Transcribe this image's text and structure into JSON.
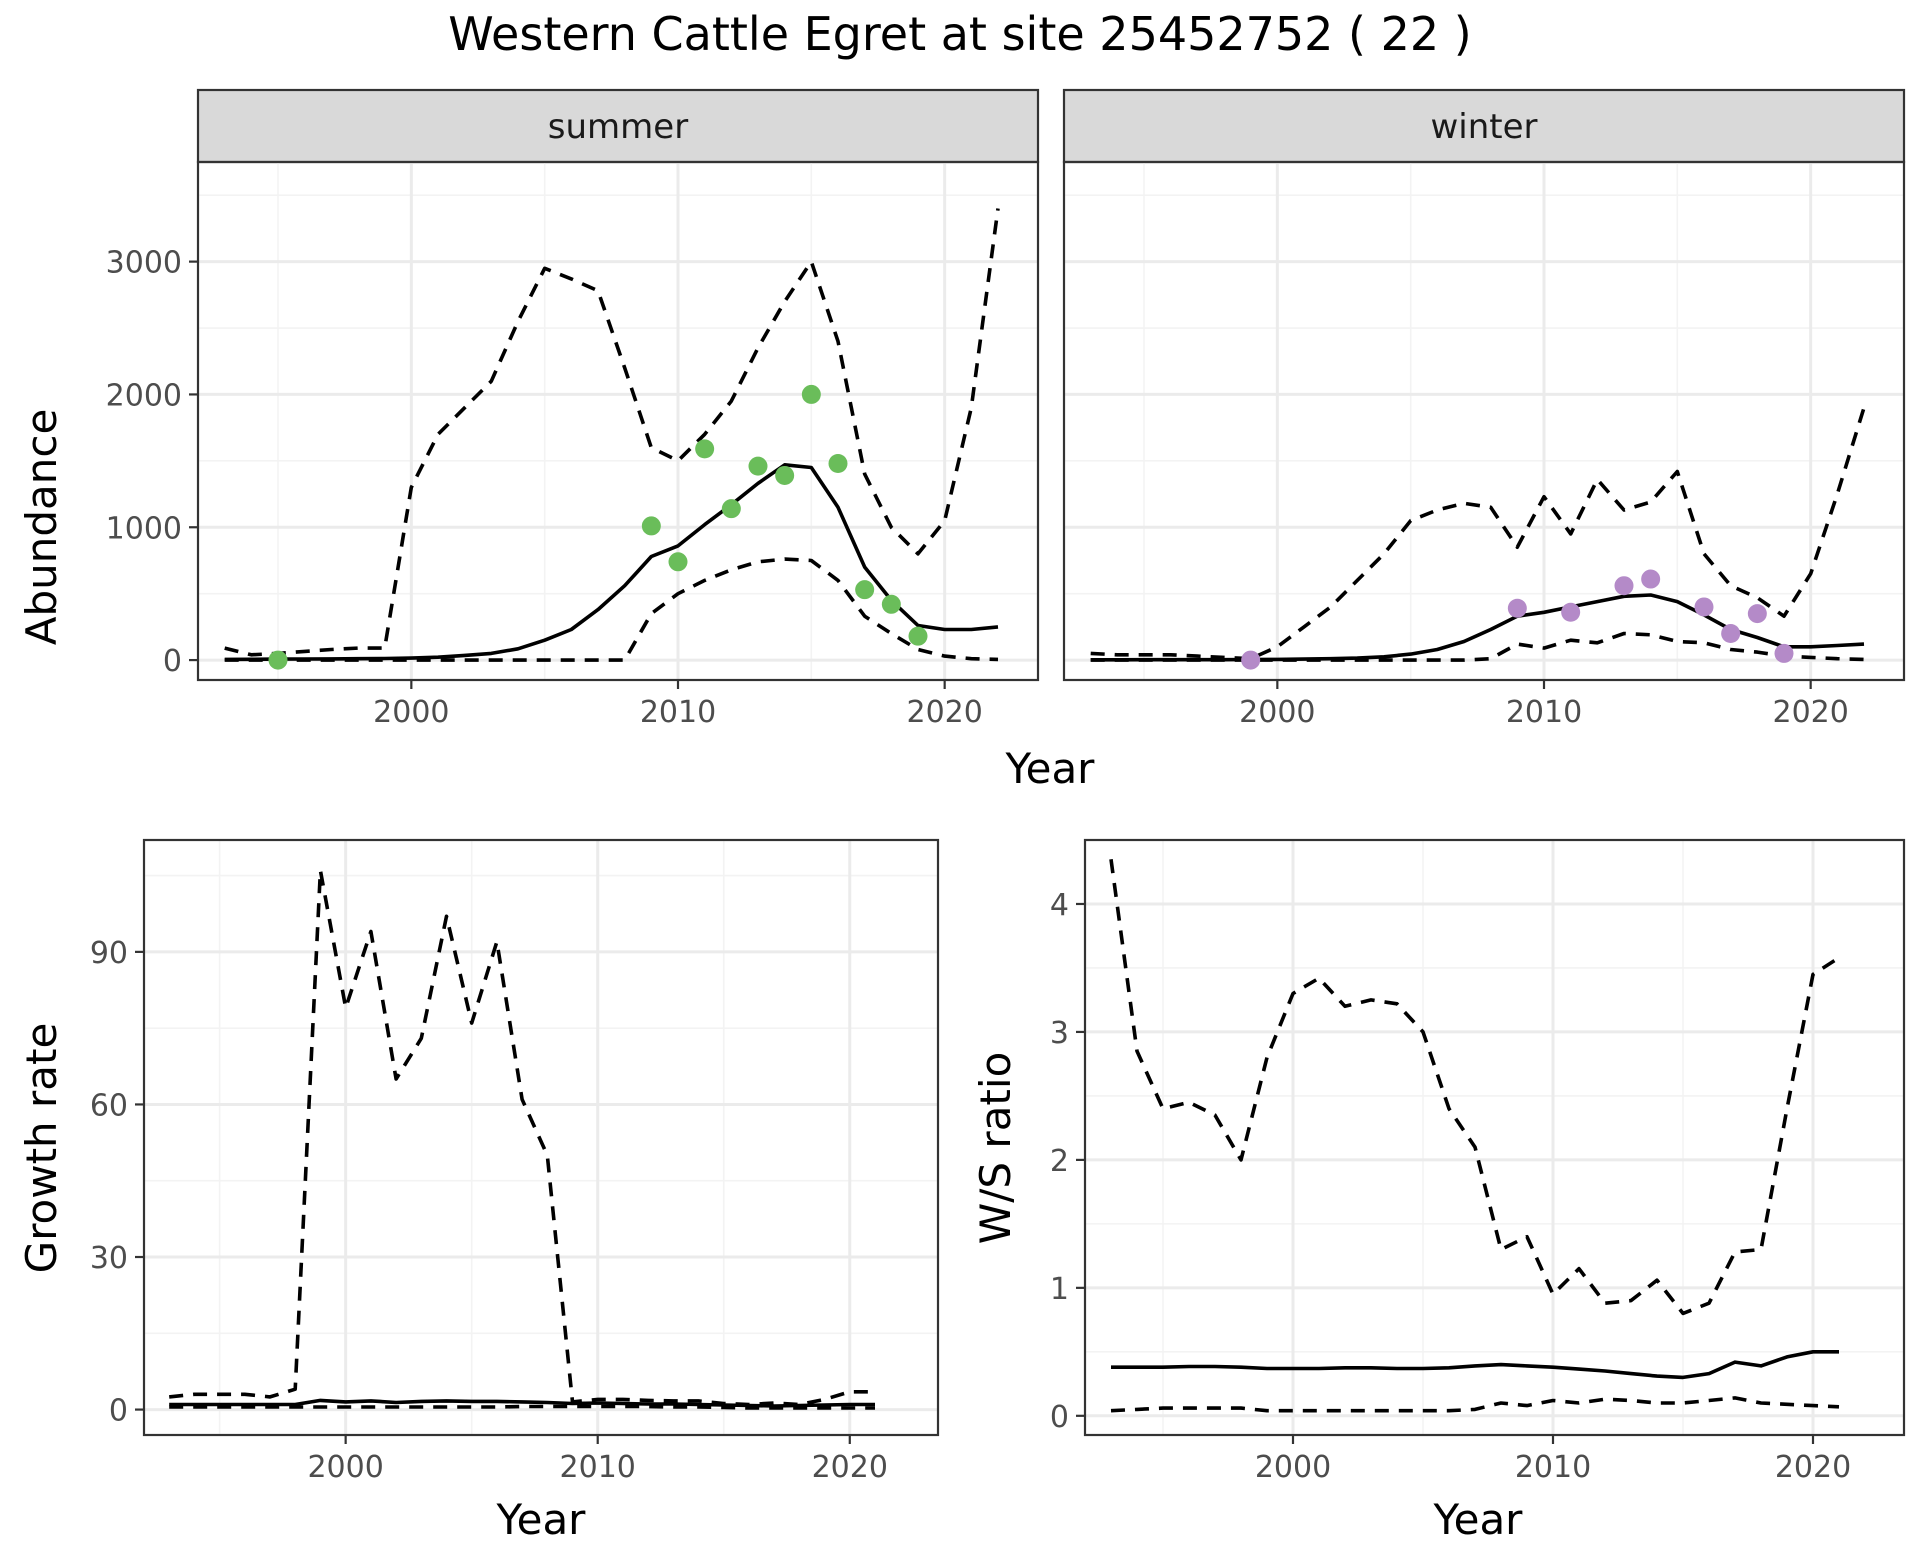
{
  "title": "Western Cattle Egret at site 25452752 ( 22 )",
  "colors": {
    "summer_points": "#6abd5a",
    "winter_points": "#b48ac8",
    "lines": "#000000"
  },
  "chart_data": [
    {
      "type": "line",
      "facet": "summer",
      "xlabel": "Year",
      "ylabel": "Abundance",
      "xlim": [
        1992,
        2023.5
      ],
      "ylim": [
        -150,
        3750
      ],
      "x_ticks": [
        2000,
        2010,
        2020
      ],
      "y_ticks": [
        0,
        1000,
        2000,
        3000
      ],
      "x": [
        1993,
        1994,
        1995,
        1996,
        1997,
        1998,
        1999,
        2000,
        2001,
        2002,
        2003,
        2004,
        2005,
        2006,
        2007,
        2008,
        2009,
        2010,
        2011,
        2012,
        2013,
        2014,
        2015,
        2016,
        2017,
        2018,
        2019,
        2020,
        2021,
        2022
      ],
      "series": [
        {
          "role": "mean",
          "style": "solid",
          "values": [
            5,
            6,
            7,
            8,
            9,
            10,
            12,
            15,
            22,
            35,
            50,
            85,
            150,
            230,
            380,
            560,
            780,
            860,
            1020,
            1170,
            1330,
            1470,
            1450,
            1150,
            700,
            450,
            260,
            230,
            230,
            250
          ]
        },
        {
          "role": "upper",
          "style": "dashed",
          "values": [
            90,
            40,
            50,
            65,
            80,
            90,
            90,
            1300,
            1700,
            1900,
            2100,
            2550,
            2950,
            2870,
            2780,
            2200,
            1600,
            1500,
            1700,
            1950,
            2350,
            2700,
            3000,
            2400,
            1400,
            1000,
            800,
            1050,
            1900,
            3400
          ]
        },
        {
          "role": "lower",
          "style": "dashed",
          "values": [
            0,
            0,
            0,
            0,
            0,
            0,
            0,
            0,
            0,
            0,
            0,
            0,
            0,
            0,
            0,
            0,
            350,
            500,
            600,
            680,
            740,
            760,
            750,
            600,
            330,
            200,
            80,
            30,
            10,
            5
          ]
        }
      ],
      "points": {
        "x": [
          1995,
          2009,
          2010,
          2011,
          2012,
          2013,
          2014,
          2015,
          2016,
          2017,
          2018,
          2019
        ],
        "y": [
          0,
          1010,
          740,
          1590,
          1140,
          1460,
          1390,
          2000,
          1480,
          530,
          420,
          180
        ]
      }
    },
    {
      "type": "line",
      "facet": "winter",
      "xlabel": "Year",
      "ylabel": "Abundance",
      "xlim": [
        1992,
        2023.5
      ],
      "ylim": [
        -150,
        3750
      ],
      "x_ticks": [
        2000,
        2010,
        2020
      ],
      "y_ticks": [
        0,
        1000,
        2000,
        3000
      ],
      "x": [
        1993,
        1994,
        1995,
        1996,
        1997,
        1998,
        1999,
        2000,
        2001,
        2002,
        2003,
        2004,
        2005,
        2006,
        2007,
        2008,
        2009,
        2010,
        2011,
        2012,
        2013,
        2014,
        2015,
        2016,
        2017,
        2018,
        2019,
        2020,
        2021,
        2022
      ],
      "series": [
        {
          "role": "mean",
          "style": "solid",
          "values": [
            2,
            2,
            3,
            3,
            3,
            3,
            4,
            5,
            7,
            10,
            15,
            25,
            45,
            80,
            140,
            230,
            330,
            360,
            400,
            440,
            480,
            490,
            440,
            340,
            230,
            170,
            100,
            100,
            110,
            120
          ]
        },
        {
          "role": "upper",
          "style": "dashed",
          "values": [
            50,
            40,
            40,
            40,
            30,
            20,
            10,
            100,
            250,
            400,
            600,
            800,
            1050,
            1130,
            1180,
            1150,
            850,
            1230,
            950,
            1360,
            1130,
            1190,
            1420,
            800,
            560,
            470,
            330,
            650,
            1250,
            1900
          ]
        },
        {
          "role": "lower",
          "style": "dashed",
          "values": [
            0,
            0,
            0,
            0,
            0,
            0,
            0,
            0,
            0,
            0,
            0,
            0,
            0,
            0,
            0,
            10,
            120,
            90,
            150,
            130,
            200,
            190,
            140,
            130,
            80,
            60,
            30,
            20,
            10,
            5
          ]
        }
      ],
      "points": {
        "x": [
          1999,
          2009,
          2011,
          2013,
          2014,
          2016,
          2017,
          2018,
          2019
        ],
        "y": [
          0,
          390,
          360,
          560,
          610,
          400,
          200,
          350,
          50
        ]
      }
    },
    {
      "type": "line",
      "xlabel": "Year",
      "ylabel": "Growth rate",
      "xlim": [
        1992,
        2023.5
      ],
      "ylim": [
        -5,
        112
      ],
      "x_ticks": [
        2000,
        2010,
        2020
      ],
      "y_ticks": [
        0,
        30,
        60,
        90
      ],
      "x": [
        1993,
        1994,
        1995,
        1996,
        1997,
        1998,
        1999,
        2000,
        2001,
        2002,
        2003,
        2004,
        2005,
        2006,
        2007,
        2008,
        2009,
        2010,
        2011,
        2012,
        2013,
        2014,
        2015,
        2016,
        2017,
        2018,
        2019,
        2020,
        2021
      ],
      "series": [
        {
          "role": "mean",
          "style": "solid",
          "values": [
            1,
            1,
            1,
            1,
            1,
            1,
            1.8,
            1.5,
            1.7,
            1.4,
            1.6,
            1.7,
            1.6,
            1.6,
            1.5,
            1.4,
            1.2,
            1.3,
            1.2,
            1.1,
            1.1,
            1.0,
            0.9,
            0.8,
            0.7,
            0.8,
            0.9,
            1.0,
            1.0
          ]
        },
        {
          "role": "upper",
          "style": "dashed",
          "values": [
            2.5,
            3,
            3,
            3,
            2.5,
            4,
            106,
            79,
            94,
            65,
            73,
            97,
            76,
            92,
            61,
            50,
            1.5,
            2,
            2,
            1.8,
            1.7,
            1.7,
            1.2,
            1.0,
            1.3,
            1.0,
            2.0,
            3.5,
            3.5
          ]
        },
        {
          "role": "lower",
          "style": "dashed",
          "values": [
            0.5,
            0.5,
            0.5,
            0.5,
            0.5,
            0.5,
            0.5,
            0.5,
            0.5,
            0.5,
            0.5,
            0.5,
            0.5,
            0.5,
            0.6,
            0.6,
            0.6,
            0.6,
            0.6,
            0.6,
            0.5,
            0.5,
            0.4,
            0.3,
            0.3,
            0.3,
            0.3,
            0.3,
            0.3
          ]
        }
      ]
    },
    {
      "type": "line",
      "xlabel": "Year",
      "ylabel": "W/S ratio",
      "xlim": [
        1992,
        2023.5
      ],
      "ylim": [
        -0.15,
        4.5
      ],
      "x_ticks": [
        2000,
        2010,
        2020
      ],
      "y_ticks": [
        0,
        1,
        2,
        3,
        4
      ],
      "x": [
        1993,
        1994,
        1995,
        1996,
        1997,
        1998,
        1999,
        2000,
        2001,
        2002,
        2003,
        2004,
        2005,
        2006,
        2007,
        2008,
        2009,
        2010,
        2011,
        2012,
        2013,
        2014,
        2015,
        2016,
        2017,
        2018,
        2019,
        2020,
        2021
      ],
      "series": [
        {
          "role": "mean",
          "style": "solid",
          "values": [
            0.38,
            0.38,
            0.38,
            0.385,
            0.385,
            0.38,
            0.37,
            0.37,
            0.37,
            0.375,
            0.375,
            0.37,
            0.37,
            0.375,
            0.39,
            0.4,
            0.39,
            0.38,
            0.365,
            0.35,
            0.33,
            0.31,
            0.3,
            0.33,
            0.42,
            0.39,
            0.46,
            0.5,
            0.5
          ]
        },
        {
          "role": "upper",
          "style": "dashed",
          "values": [
            4.35,
            2.85,
            2.4,
            2.45,
            2.35,
            2.0,
            2.8,
            3.3,
            3.42,
            3.2,
            3.25,
            3.22,
            3.0,
            2.4,
            2.1,
            1.3,
            1.4,
            0.95,
            1.15,
            0.88,
            0.9,
            1.06,
            0.8,
            0.88,
            1.28,
            1.3,
            2.4,
            3.45,
            3.58
          ]
        },
        {
          "role": "lower",
          "style": "dashed",
          "values": [
            0.04,
            0.05,
            0.06,
            0.06,
            0.06,
            0.06,
            0.04,
            0.04,
            0.04,
            0.04,
            0.04,
            0.04,
            0.04,
            0.04,
            0.05,
            0.1,
            0.08,
            0.12,
            0.1,
            0.13,
            0.12,
            0.1,
            0.1,
            0.12,
            0.14,
            0.1,
            0.09,
            0.08,
            0.07
          ]
        }
      ]
    }
  ]
}
